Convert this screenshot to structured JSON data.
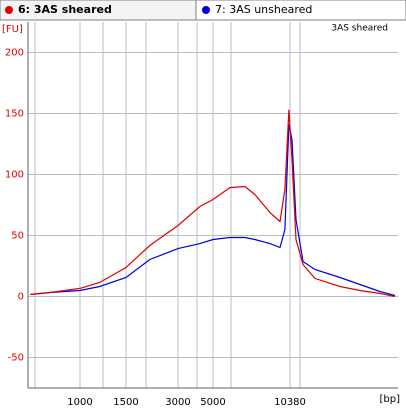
{
  "chart_data": {
    "type": "line",
    "annotation": "3AS sheared",
    "x_label": "[bp]",
    "y_label": "[FU]",
    "x": [
      643,
      767,
      1000,
      1190,
      1500,
      2060,
      3000,
      4130,
      5000,
      5870,
      6770,
      7440,
      8580,
      9440,
      9890,
      10270,
      10580,
      10990,
      11740,
      13150,
      16670,
      20150,
      24350,
      28080
    ],
    "series": [
      {
        "name": "6: 3AS sheared",
        "color": "#e00000",
        "values": [
          1.6,
          3.3,
          6.6,
          11.5,
          23.8,
          41.8,
          58.2,
          73.8,
          79.5,
          89.3,
          90.2,
          83.6,
          68.9,
          61.5,
          87.7,
          153,
          112,
          46.7,
          26.2,
          14.8,
          8.2,
          4.9,
          2.5,
          0
        ]
      },
      {
        "name": "7: 3AS unsheared",
        "color": "#0000e0",
        "values": [
          1.6,
          3.3,
          4.9,
          8.2,
          15.6,
          30.3,
          39.3,
          43.4,
          46.7,
          48.4,
          48.4,
          46.7,
          43.4,
          40.2,
          54.9,
          141,
          128.7,
          63.1,
          28.7,
          22.1,
          15.6,
          9.8,
          4.1,
          0.8
        ]
      }
    ],
    "xscale": "ladder",
    "xlim": [
      630,
      28900
    ],
    "xticks": [
      1000,
      1500,
      3000,
      5000,
      10380
    ],
    "ylim": [
      -75,
      225
    ],
    "yticks": [
      -50,
      0,
      50,
      100,
      150,
      200
    ],
    "grid": true
  }
}
